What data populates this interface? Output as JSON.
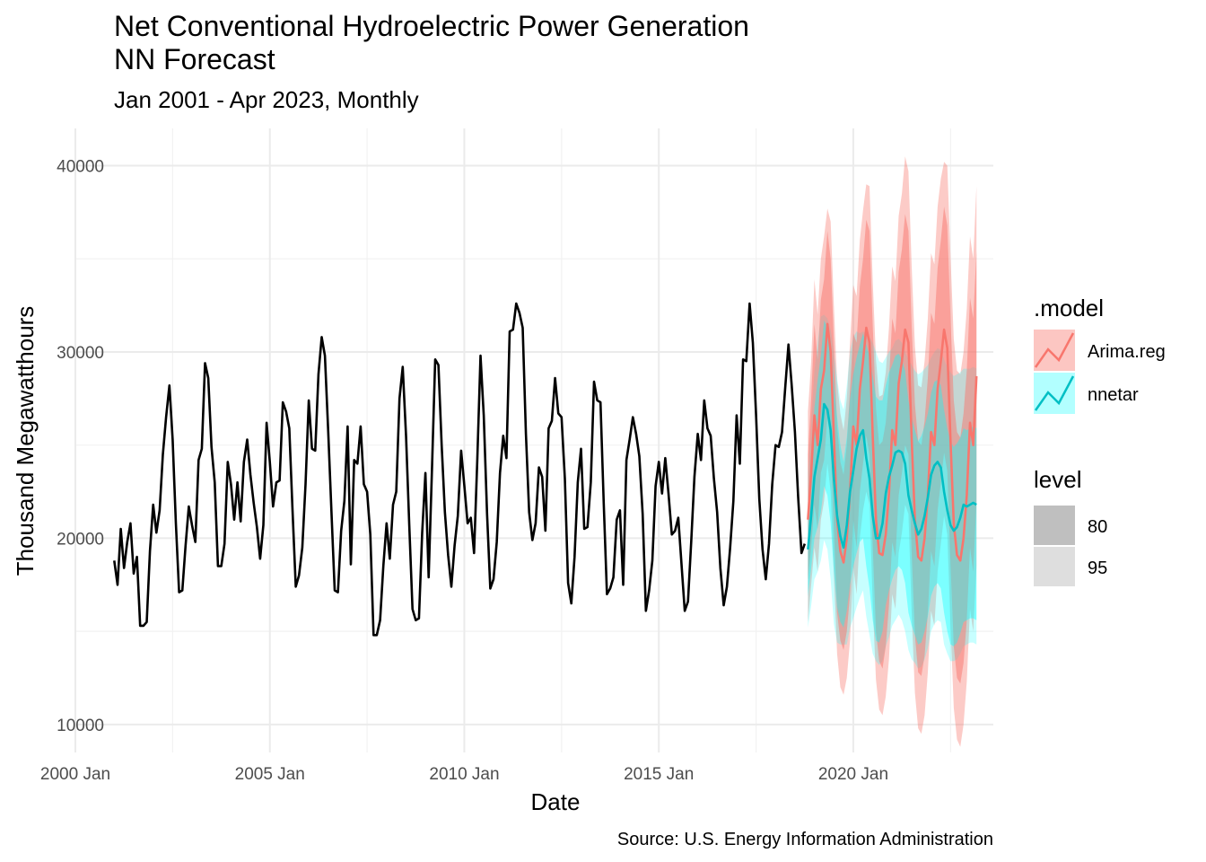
{
  "chart_data": {
    "type": "line",
    "title_line1": "Net Conventional Hydroelectric Power Generation",
    "title_line2": "NN Forecast",
    "subtitle": "Jan 2001 - Apr 2023, Monthly",
    "xlabel": "Date",
    "ylabel": "Thousand Megawatthours",
    "caption": "Source: U.S. Energy Information Administration",
    "xlim": [
      2000.0,
      2023.6
    ],
    "ylim": [
      8500,
      42000
    ],
    "x_ticks": [
      {
        "value": 2000.0,
        "label": "2000 Jan"
      },
      {
        "value": 2005.0,
        "label": "2005 Jan"
      },
      {
        "value": 2010.0,
        "label": "2010 Jan"
      },
      {
        "value": 2015.0,
        "label": "2015 Jan"
      },
      {
        "value": 2020.0,
        "label": "2020 Jan"
      }
    ],
    "y_ticks": [
      {
        "value": 10000,
        "label": "10000"
      },
      {
        "value": 20000,
        "label": "20000"
      },
      {
        "value": 30000,
        "label": "30000"
      },
      {
        "value": 40000,
        "label": "40000"
      }
    ],
    "grid": true,
    "historical": {
      "name": "historical",
      "color": "#000000",
      "start": "2001-01",
      "values": [
        18800,
        17500,
        20500,
        18400,
        19800,
        20800,
        18100,
        19000,
        15300,
        15300,
        15500,
        19300,
        21800,
        20300,
        21500,
        24500,
        26500,
        28200,
        25300,
        20800,
        17100,
        17200,
        19600,
        21700,
        20700,
        19800,
        24200,
        24800,
        29400,
        28600,
        24900,
        23000,
        18500,
        18500,
        19700,
        24100,
        22900,
        21000,
        23000,
        20900,
        24100,
        25300,
        23400,
        21900,
        20600,
        18900,
        20700,
        26200,
        24100,
        21700,
        23000,
        23100,
        27300,
        26800,
        25900,
        21500,
        17400,
        18000,
        19500,
        22900,
        27400,
        24800,
        24700,
        28800,
        30800,
        29800,
        25700,
        21400,
        17200,
        17100,
        20400,
        22000,
        26000,
        18600,
        24200,
        24000,
        26000,
        22900,
        22500,
        20200,
        14800,
        14800,
        15600,
        18500,
        20800,
        18900,
        21800,
        22500,
        27500,
        29200,
        25500,
        20700,
        16200,
        15600,
        15700,
        20300,
        23500,
        17900,
        23700,
        29600,
        29300,
        25000,
        21400,
        19100,
        17400,
        19600,
        21200,
        24700,
        22800,
        20800,
        21100,
        19200,
        24200,
        29800,
        26600,
        21300,
        17300,
        17800,
        19800,
        23500,
        25500,
        24300,
        31100,
        31200,
        32600,
        32100,
        31300,
        25600,
        21400,
        19900,
        20800,
        23800,
        23300,
        20400,
        25900,
        26300,
        28600,
        26700,
        26500,
        23200,
        17600,
        16500,
        19000,
        23000,
        24800,
        20500,
        20600,
        23000,
        28400,
        27400,
        27300,
        21900,
        17000,
        17300,
        17900,
        21000,
        21500,
        17500,
        24200,
        25300,
        26500,
        25600,
        24400,
        21300,
        16100,
        17200,
        18800,
        22800,
        24100,
        22400,
        24300,
        22400,
        20200,
        20400,
        21100,
        18600,
        16100,
        16600,
        19800,
        23300,
        25600,
        24200,
        27400,
        25900,
        25500,
        23200,
        21400,
        18400,
        16400,
        17400,
        19500,
        22000,
        26600,
        24000,
        29600,
        29500,
        32600,
        30500,
        26600,
        22100,
        19400,
        17800,
        19700,
        22900,
        25000,
        24900,
        25700,
        28100,
        30400,
        28200,
        25700,
        22200,
        19200,
        19700
      ]
    },
    "series": [
      {
        "name": "Arima.reg",
        "color": "#F8766D",
        "start": "2018-11",
        "mean": [
          21000,
          23500,
          26600,
          25000,
          28000,
          29000,
          31500,
          30000,
          25500,
          21000,
          19300,
          18700,
          20000,
          22500,
          26000,
          25000,
          28000,
          29500,
          31300,
          30500,
          25500,
          21000,
          19200,
          19100,
          20200,
          22400,
          25800,
          25000,
          28300,
          29500,
          31200,
          30500,
          25300,
          21000,
          19000,
          18800,
          20000,
          22300,
          25700,
          25000,
          28000,
          29500,
          31200,
          30200,
          25200,
          20800,
          19100,
          18800,
          20000,
          22300,
          26200,
          25000,
          28700
        ],
        "lo80": [
          17800,
          19500,
          21800,
          20500,
          23500,
          24200,
          26500,
          25000,
          20500,
          16000,
          14500,
          14000,
          15000,
          17000,
          21000,
          19500,
          22500,
          24000,
          25500,
          24500,
          19600,
          15000,
          13400,
          13000,
          14200,
          16400,
          19800,
          19000,
          22300,
          23500,
          25000,
          24500,
          19200,
          14800,
          12800,
          12600,
          13700,
          16000,
          19300,
          18500,
          21500,
          23000,
          24600,
          23600,
          18600,
          14200,
          12500,
          12200,
          13300,
          15600,
          19500,
          18200,
          22000
        ],
        "hi80": [
          24500,
          27500,
          31500,
          29600,
          32800,
          33900,
          36500,
          35000,
          30500,
          26000,
          24100,
          23400,
          25000,
          28000,
          31000,
          30500,
          33500,
          35000,
          37100,
          36500,
          31400,
          27000,
          25000,
          25200,
          26200,
          28400,
          31800,
          31000,
          34300,
          35500,
          37400,
          36500,
          31400,
          27200,
          25200,
          25000,
          26300,
          28600,
          32100,
          31500,
          34500,
          36000,
          37800,
          36800,
          31800,
          27400,
          25700,
          25400,
          26700,
          29000,
          32900,
          31800,
          35400
        ],
        "lo95": [
          15500,
          17500,
          19500,
          18200,
          21000,
          22000,
          24000,
          22500,
          18000,
          13800,
          12000,
          11600,
          12500,
          14500,
          18500,
          17000,
          20000,
          21500,
          22500,
          21800,
          16500,
          12400,
          10800,
          10500,
          11500,
          13500,
          17000,
          16200,
          19200,
          20300,
          21800,
          21300,
          16000,
          11700,
          9800,
          9500,
          10500,
          12800,
          16100,
          15300,
          18200,
          19700,
          21200,
          20200,
          15300,
          10900,
          9200,
          8800,
          10000,
          12300,
          16200,
          15000,
          18500
        ],
        "hi95": [
          26800,
          29500,
          33900,
          32000,
          35000,
          36200,
          37700,
          37000,
          32500,
          28400,
          26700,
          25800,
          27500,
          30500,
          33600,
          33000,
          36000,
          37600,
          39000,
          38900,
          33800,
          29600,
          27600,
          27700,
          28900,
          31300,
          34600,
          33800,
          37300,
          38500,
          40500,
          39700,
          34600,
          30300,
          28200,
          28100,
          29500,
          31800,
          35300,
          34700,
          37800,
          39300,
          40200,
          40000,
          35100,
          30700,
          29000,
          28800,
          30000,
          32300,
          36200,
          35000,
          38900
        ]
      },
      {
        "name": "nnetar",
        "color": "#00BFC4",
        "start": "2018-11",
        "mean": [
          19400,
          21200,
          23300,
          24300,
          25300,
          27200,
          26900,
          25800,
          23200,
          21200,
          20100,
          19500,
          20700,
          22500,
          23600,
          24800,
          25500,
          25800,
          24300,
          23200,
          21200,
          20000,
          20000,
          20800,
          22400,
          23300,
          23900,
          24600,
          24700,
          24600,
          24000,
          22300,
          21500,
          20800,
          20200,
          20500,
          21200,
          22200,
          23400,
          23900,
          24100,
          23800,
          22500,
          21500,
          20700,
          20400,
          20600,
          21100,
          21800,
          21700,
          21800,
          21900,
          21800
        ],
        "lo80": [
          16900,
          18400,
          20000,
          20600,
          21400,
          22800,
          22300,
          20800,
          18200,
          16300,
          15500,
          15200,
          16100,
          17500,
          18500,
          19200,
          19800,
          20000,
          18500,
          17300,
          15600,
          14500,
          14400,
          15000,
          16400,
          17200,
          17800,
          18300,
          18500,
          18300,
          17600,
          16000,
          15300,
          14800,
          14300,
          14400,
          15000,
          15800,
          16900,
          17400,
          17600,
          17300,
          16000,
          15000,
          14300,
          14200,
          14400,
          14900,
          15500,
          15600,
          15700,
          15700,
          15600
        ],
        "hi80": [
          21900,
          24200,
          27000,
          28500,
          29800,
          31700,
          31300,
          30600,
          28400,
          26500,
          25000,
          24100,
          25400,
          27500,
          28800,
          29700,
          30400,
          31000,
          30400,
          29800,
          28700,
          27600,
          27400,
          27400,
          28200,
          28900,
          29300,
          29800,
          29900,
          29600,
          29000,
          27400,
          26500,
          25800,
          25200,
          25500,
          26000,
          26700,
          27800,
          28400,
          28500,
          28200,
          26900,
          25900,
          25200,
          24900,
          25100,
          25400,
          25900,
          25800,
          25900,
          26000,
          25900
        ],
        "lo95": [
          15200,
          16400,
          17800,
          18200,
          18800,
          19900,
          19400,
          17800,
          15400,
          14400,
          14300,
          14300,
          14300,
          15200,
          15700,
          16300,
          16800,
          17200,
          15800,
          14800,
          13800,
          13400,
          13200,
          13400,
          14200,
          14700,
          15300,
          15600,
          15900,
          15600,
          15000,
          14000,
          13500,
          13300,
          13000,
          13100,
          13500,
          14100,
          15000,
          15400,
          15600,
          15500,
          14300,
          13800,
          13400,
          13400,
          13500,
          13800,
          14200,
          14300,
          14400,
          14400,
          14300
        ],
        "hi95": [
          23500,
          26100,
          29000,
          30500,
          31900,
          32000,
          31800,
          31200,
          30000,
          28600,
          27400,
          26900,
          28200,
          30000,
          30800,
          31100,
          31000,
          31100,
          31000,
          30800,
          30500,
          30000,
          29500,
          29400,
          29700,
          30000,
          30200,
          30600,
          30700,
          30500,
          30000,
          29600,
          29300,
          29000,
          28800,
          28900,
          29100,
          29300,
          29700,
          30000,
          30200,
          30100,
          29600,
          29200,
          28900,
          28700,
          28800,
          28900,
          29100,
          29100,
          29100,
          29200,
          29100
        ]
      }
    ],
    "legend": {
      "position": "right",
      "model_title": ".model",
      "model_entries": [
        {
          "label": "Arima.reg",
          "color": "#F8766D",
          "fill": "#F8766D"
        },
        {
          "label": "nnetar",
          "color": "#00BFC4",
          "fill": "#00FFFF"
        }
      ],
      "level_title": "level",
      "level_entries": [
        {
          "label": "80"
        },
        {
          "label": "95"
        }
      ]
    }
  }
}
